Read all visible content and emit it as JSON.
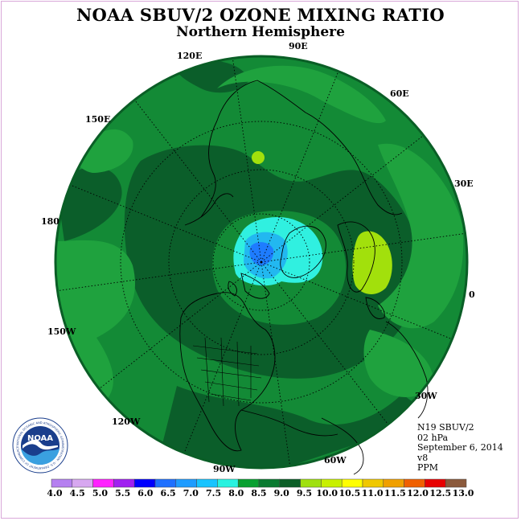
{
  "header": {
    "title": "NOAA SBUV/2 OZONE MIXING RATIO",
    "subtitle": "Northern Hemisphere"
  },
  "longitude_labels": [
    {
      "id": "lon-90e",
      "text": "90E"
    },
    {
      "id": "lon-60e",
      "text": "60E"
    },
    {
      "id": "lon-30e",
      "text": "30E"
    },
    {
      "id": "lon-0",
      "text": "0"
    },
    {
      "id": "lon-30w",
      "text": "30W"
    },
    {
      "id": "lon-60w",
      "text": "60W"
    },
    {
      "id": "lon-90w",
      "text": "90W"
    },
    {
      "id": "lon-120w",
      "text": "120W"
    },
    {
      "id": "lon-150w",
      "text": "150W"
    },
    {
      "id": "lon-180",
      "text": "180"
    },
    {
      "id": "lon-150e",
      "text": "150E"
    },
    {
      "id": "lon-120e",
      "text": "120E"
    }
  ],
  "info": {
    "instrument": "N19 SBUV/2",
    "level": "02 hPa",
    "date": "September 6, 2014",
    "version": "v8",
    "units": "PPM"
  },
  "logo": {
    "name": "NOAA",
    "ring_text": "NATIONAL OCEANIC AND ATMOSPHERIC ADMINISTRATION · U.S. DEPARTMENT OF COMMERCE"
  },
  "colorbar": {
    "ticks": [
      "4.0",
      "4.5",
      "5.0",
      "5.5",
      "6.0",
      "6.5",
      "7.0",
      "7.5",
      "8.0",
      "8.5",
      "9.0",
      "9.5",
      "10.0",
      "10.5",
      "11.0",
      "11.5",
      "12.0",
      "12.5",
      "13.0"
    ],
    "colors": [
      "#b580f0",
      "#d7a8f0",
      "#ff22ff",
      "#a020f0",
      "#0000ff",
      "#1e70ff",
      "#1e9cff",
      "#18c4ff",
      "#28f2e0",
      "#08a030",
      "#097a30",
      "#0a5e26",
      "#a0e010",
      "#c8f000",
      "#ffff00",
      "#f0c800",
      "#f0a000",
      "#f06000",
      "#e80000",
      "#8b5a3c"
    ]
  },
  "legend_colors": {
    "dark_green": "#0b5e2a",
    "mid_green": "#138a36",
    "green": "#1fa23e",
    "lime": "#a2e00c",
    "cyan": "#30f0e0",
    "light_blue": "#22b8f0",
    "blue": "#1e7cff"
  }
}
